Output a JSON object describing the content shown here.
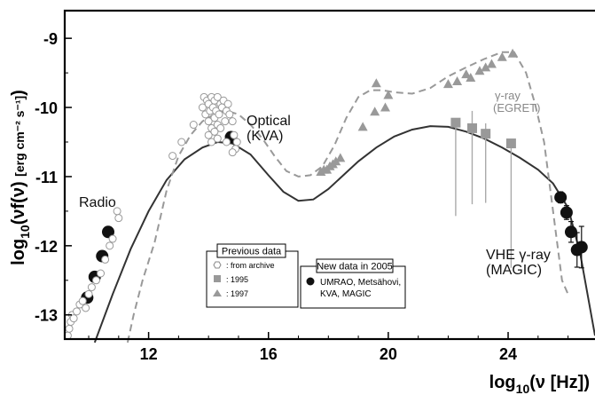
{
  "chart_data": {
    "type": "scatter",
    "xlabel": {
      "base": "log",
      "sub": "10",
      "rest": "(ν [Hz])"
    },
    "ylabel": {
      "base": "log",
      "sub": "10",
      "rest": "(νf(ν) ",
      "unit": "[erg cm⁻² s⁻¹]",
      "close": ")"
    },
    "xlim": [
      9.2,
      26.9
    ],
    "ylim": [
      -13.35,
      -8.6
    ],
    "xticks": [
      12,
      16,
      20,
      24
    ],
    "yticks": [
      -13,
      -12,
      -11,
      -10,
      -9
    ],
    "annotations": {
      "radio": "Radio",
      "optical_1": "Optical",
      "optical_2": "(KVA)",
      "gamma_1": "γ-ray",
      "gamma_2": "(EGRET)",
      "vhe_1": "VHE γ-ray",
      "vhe_2": "(MAGIC)"
    },
    "legend_previous": {
      "title": "Previous data",
      "items": [
        ": from archive",
        ": 1995",
        ": 1997"
      ]
    },
    "legend_new": {
      "title": "New data in 2005",
      "items": [
        "UMRAO, Metsähovi,",
        "KVA, MAGIC"
      ]
    },
    "series": [
      {
        "marker": "filled-circle",
        "x": [
          9.95,
          10.2,
          10.45,
          10.65,
          14.75,
          25.75,
          25.95,
          26.1,
          26.3,
          26.45
        ],
        "y": [
          -12.75,
          -12.45,
          -12.15,
          -11.8,
          -10.43,
          -11.3,
          -11.52,
          -11.8,
          -12.06,
          -12.02
        ],
        "err": [
          0,
          0,
          0,
          0,
          0,
          0.08,
          0.1,
          0.15,
          0.25,
          0.3
        ]
      },
      {
        "marker": "open-circle",
        "x": [
          9.3,
          9.35,
          9.4,
          9.45,
          9.5,
          9.6,
          9.7,
          9.8,
          9.9,
          10.0,
          10.1,
          10.25,
          10.4,
          10.55,
          10.7,
          10.8,
          10.95,
          11.0,
          12.8,
          13.1,
          13.5,
          13.8,
          13.85,
          13.9,
          13.95,
          14.0,
          14.0,
          14.05,
          14.1,
          14.1,
          14.15,
          14.2,
          14.2,
          14.25,
          14.3,
          14.3,
          14.35,
          14.4,
          14.45,
          14.5,
          14.55,
          14.6,
          14.65,
          14.7,
          14.8,
          14.85,
          14.9,
          14.95,
          14.0,
          14.1,
          14.2,
          14.3,
          14.4,
          14.6,
          14.8
        ],
        "y": [
          -13.3,
          -13.2,
          -13.1,
          -13.0,
          -13.05,
          -12.95,
          -12.85,
          -12.8,
          -12.9,
          -12.7,
          -12.6,
          -12.5,
          -12.4,
          -12.2,
          -12.0,
          -11.9,
          -11.5,
          -11.6,
          -10.7,
          -10.5,
          -10.25,
          -10.0,
          -9.85,
          -10.1,
          -9.9,
          -10.2,
          -9.95,
          -10.05,
          -9.85,
          -10.3,
          -10.0,
          -9.9,
          -10.15,
          -10.05,
          -9.85,
          -10.25,
          -10.1,
          -9.95,
          -10.0,
          -9.9,
          -10.2,
          -10.05,
          -9.95,
          -10.1,
          -10.2,
          -10.4,
          -10.6,
          -10.5,
          -10.4,
          -10.5,
          -10.35,
          -10.45,
          -10.3,
          -10.5,
          -10.65
        ]
      },
      {
        "name": "1995",
        "marker": "square",
        "x": [
          22.25,
          22.8,
          23.25,
          24.1
        ],
        "y": [
          -10.22,
          -10.3,
          -10.38,
          -10.52
        ],
        "err_low": [
          1.35,
          1.1,
          1.0,
          1.8
        ],
        "err_high": [
          0,
          0.25,
          0.15,
          0
        ]
      },
      {
        "name": "1997",
        "marker": "triangle",
        "x": [
          17.75,
          17.85,
          17.95,
          18.05,
          18.15,
          18.25,
          18.4,
          19.15,
          19.55,
          19.6,
          19.9,
          20.0,
          22.0,
          22.3,
          22.6,
          22.75,
          23.05,
          23.25,
          23.45,
          23.8,
          24.15
        ],
        "y": [
          -10.93,
          -10.9,
          -10.9,
          -10.85,
          -10.82,
          -10.78,
          -10.73,
          -10.28,
          -10.06,
          -9.65,
          -10.0,
          -9.82,
          -9.66,
          -9.62,
          -9.52,
          -9.57,
          -9.47,
          -9.42,
          -9.37,
          -9.27,
          -9.22
        ]
      }
    ],
    "curves": [
      {
        "style": "solid",
        "color": "#333333",
        "x": [
          10.2,
          10.8,
          11.4,
          12.0,
          12.6,
          13.2,
          13.8,
          14.3,
          14.8,
          15.4,
          16.0,
          16.5,
          17.0,
          17.5,
          18.0,
          18.5,
          19.0,
          19.6,
          20.2,
          20.8,
          21.4,
          22.0,
          22.6,
          23.2,
          23.8,
          24.4,
          25.0,
          25.5,
          26.0,
          26.4,
          26.9
        ],
        "y": [
          -13.4,
          -12.7,
          -12.05,
          -11.5,
          -11.05,
          -10.75,
          -10.58,
          -10.5,
          -10.52,
          -10.68,
          -10.98,
          -11.22,
          -11.35,
          -11.33,
          -11.18,
          -10.98,
          -10.78,
          -10.58,
          -10.42,
          -10.32,
          -10.27,
          -10.28,
          -10.35,
          -10.45,
          -10.58,
          -10.73,
          -10.9,
          -11.1,
          -11.45,
          -12.1,
          -13.3
        ]
      },
      {
        "style": "dashed",
        "color": "#999999",
        "x": [
          11.3,
          11.5,
          11.8,
          12.2,
          12.6,
          13.0,
          13.4,
          13.8,
          14.2,
          14.6,
          15.0,
          15.4,
          15.8,
          16.2,
          16.6,
          17.0,
          17.4,
          17.8,
          18.2,
          18.6,
          19.0,
          19.4,
          19.8,
          20.2,
          20.8,
          21.4,
          22.0,
          22.6,
          23.2,
          23.8,
          24.2,
          24.6,
          24.9,
          25.2,
          25.5,
          25.8,
          26.0
        ],
        "y": [
          -13.4,
          -13.0,
          -12.5,
          -11.95,
          -11.2,
          -10.7,
          -10.4,
          -10.2,
          -10.1,
          -10.05,
          -10.1,
          -10.25,
          -10.45,
          -10.7,
          -10.92,
          -11.0,
          -10.98,
          -10.85,
          -10.55,
          -10.15,
          -9.85,
          -9.75,
          -9.75,
          -9.78,
          -9.8,
          -9.72,
          -9.55,
          -9.42,
          -9.3,
          -9.2,
          -9.2,
          -9.5,
          -9.95,
          -10.5,
          -11.5,
          -12.5,
          -12.7
        ]
      }
    ]
  }
}
